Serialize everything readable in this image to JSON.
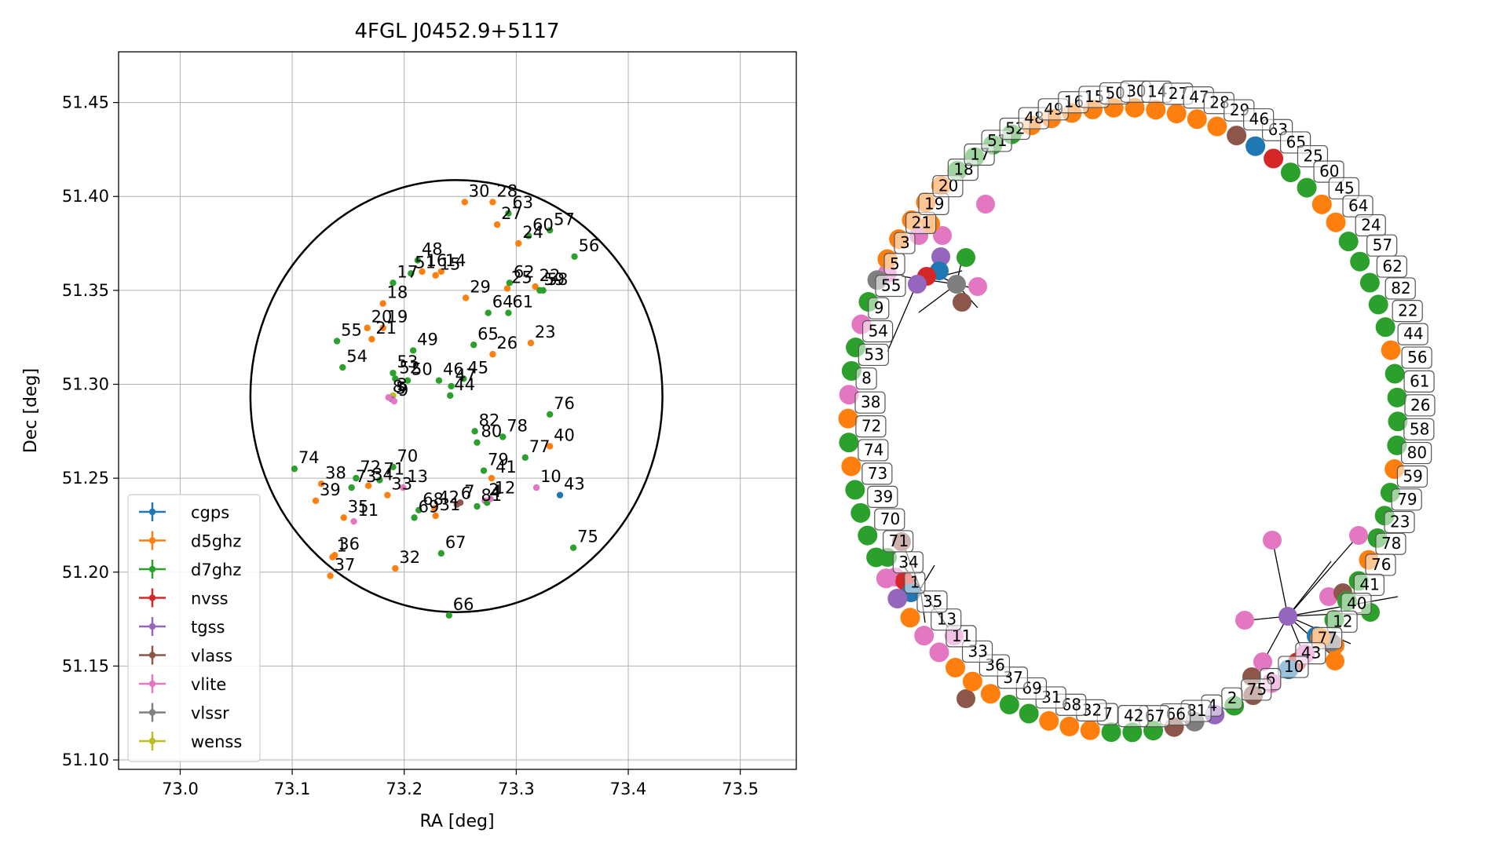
{
  "colors": {
    "cgps": "#1f77b4",
    "d5ghz": "#ff7f0e",
    "d7ghz": "#2ca02c",
    "nvss": "#d62728",
    "tgss": "#9467bd",
    "vlass": "#8c564b",
    "vlite": "#e377c2",
    "vlssr": "#7f7f7f",
    "wenss": "#bcbd22"
  },
  "chart_data": [
    {
      "type": "scatter",
      "title": "4FGL J0452.9+5117",
      "xlabel": "RA [deg]",
      "ylabel": "Dec [deg]",
      "xlim": [
        72.945,
        73.55
      ],
      "ylim": [
        51.095,
        51.477
      ],
      "xticks": [
        "73.0",
        "73.1",
        "73.2",
        "73.3",
        "73.4",
        "73.5"
      ],
      "yticks": [
        "51.10",
        "51.15",
        "51.20",
        "51.25",
        "51.30",
        "51.35",
        "51.40",
        "51.45"
      ],
      "grid": true,
      "legend_position": "lower-left",
      "legend": [
        "cgps",
        "d5ghz",
        "d7ghz",
        "nvss",
        "tgss",
        "vlass",
        "vlite",
        "vlssr",
        "wenss"
      ],
      "circle": {
        "center_ra": 73.2466,
        "center_dec": 51.2937,
        "radius": 0.115
      },
      "points": [
        {
          "id": "1",
          "ra": 73.136,
          "dec": 51.208,
          "cat": "d5ghz"
        },
        {
          "id": "2",
          "ra": 73.272,
          "dec": 51.238,
          "cat": "vlite"
        },
        {
          "id": "3",
          "ra": 73.19,
          "dec": 51.294,
          "cat": "wenss"
        },
        {
          "id": "4",
          "ra": 73.274,
          "dec": 51.237,
          "cat": "d7ghz"
        },
        {
          "id": "5",
          "ra": 73.189,
          "dec": 51.292,
          "cat": "tgss"
        },
        {
          "id": "6",
          "ra": 73.247,
          "dec": 51.236,
          "cat": "vlass"
        },
        {
          "id": "7",
          "ra": 73.25,
          "dec": 51.237,
          "cat": "vlass"
        },
        {
          "id": "8",
          "ra": 73.186,
          "dec": 51.293,
          "cat": "vlite"
        },
        {
          "id": "9",
          "ra": 73.191,
          "dec": 51.291,
          "cat": "vlite"
        },
        {
          "id": "10",
          "ra": 73.318,
          "dec": 51.245,
          "cat": "vlite"
        },
        {
          "id": "11",
          "ra": 73.155,
          "dec": 51.227,
          "cat": "vlite"
        },
        {
          "id": "12",
          "ra": 73.277,
          "dec": 51.239,
          "cat": "vlite"
        },
        {
          "id": "13",
          "ra": 73.199,
          "dec": 51.245,
          "cat": "vlite"
        },
        {
          "id": "14",
          "ra": 73.233,
          "dec": 51.36,
          "cat": "d5ghz"
        },
        {
          "id": "15",
          "ra": 73.228,
          "dec": 51.358,
          "cat": "d5ghz"
        },
        {
          "id": "16",
          "ra": 73.216,
          "dec": 51.36,
          "cat": "d5ghz"
        },
        {
          "id": "17",
          "ra": 73.19,
          "dec": 51.354,
          "cat": "d7ghz"
        },
        {
          "id": "18",
          "ra": 73.181,
          "dec": 51.343,
          "cat": "d5ghz"
        },
        {
          "id": "19",
          "ra": 73.181,
          "dec": 51.33,
          "cat": "d5ghz"
        },
        {
          "id": "20",
          "ra": 73.167,
          "dec": 51.33,
          "cat": "d5ghz"
        },
        {
          "id": "21",
          "ra": 73.171,
          "dec": 51.324,
          "cat": "d5ghz"
        },
        {
          "id": "22",
          "ra": 73.317,
          "dec": 51.352,
          "cat": "d5ghz"
        },
        {
          "id": "23",
          "ra": 73.313,
          "dec": 51.322,
          "cat": "d5ghz"
        },
        {
          "id": "24",
          "ra": 73.302,
          "dec": 51.375,
          "cat": "d5ghz"
        },
        {
          "id": "25",
          "ra": 73.292,
          "dec": 51.351,
          "cat": "d5ghz"
        },
        {
          "id": "26",
          "ra": 73.279,
          "dec": 51.316,
          "cat": "d5ghz"
        },
        {
          "id": "27",
          "ra": 73.283,
          "dec": 51.385,
          "cat": "d5ghz"
        },
        {
          "id": "28",
          "ra": 73.279,
          "dec": 51.397,
          "cat": "d5ghz"
        },
        {
          "id": "29",
          "ra": 73.255,
          "dec": 51.346,
          "cat": "d5ghz"
        },
        {
          "id": "30",
          "ra": 73.254,
          "dec": 51.397,
          "cat": "d5ghz"
        },
        {
          "id": "31",
          "ra": 73.228,
          "dec": 51.23,
          "cat": "d5ghz"
        },
        {
          "id": "32",
          "ra": 73.192,
          "dec": 51.202,
          "cat": "d5ghz"
        },
        {
          "id": "33",
          "ra": 73.185,
          "dec": 51.241,
          "cat": "d5ghz"
        },
        {
          "id": "34",
          "ra": 73.168,
          "dec": 51.246,
          "cat": "d5ghz"
        },
        {
          "id": "35",
          "ra": 73.146,
          "dec": 51.229,
          "cat": "d5ghz"
        },
        {
          "id": "36",
          "ra": 73.138,
          "dec": 51.209,
          "cat": "d5ghz"
        },
        {
          "id": "37",
          "ra": 73.134,
          "dec": 51.198,
          "cat": "d5ghz"
        },
        {
          "id": "38",
          "ra": 73.126,
          "dec": 51.247,
          "cat": "d5ghz"
        },
        {
          "id": "39",
          "ra": 73.121,
          "dec": 51.238,
          "cat": "d5ghz"
        },
        {
          "id": "40",
          "ra": 73.33,
          "dec": 51.267,
          "cat": "d5ghz"
        },
        {
          "id": "41",
          "ra": 73.278,
          "dec": 51.25,
          "cat": "d5ghz"
        },
        {
          "id": "42",
          "ra": 73.227,
          "dec": 51.234,
          "cat": "d5ghz"
        },
        {
          "id": "43",
          "ra": 73.339,
          "dec": 51.241,
          "cat": "cgps"
        },
        {
          "id": "44",
          "ra": 73.241,
          "dec": 51.294,
          "cat": "d7ghz"
        },
        {
          "id": "45",
          "ra": 73.253,
          "dec": 51.303,
          "cat": "d7ghz"
        },
        {
          "id": "46",
          "ra": 73.231,
          "dec": 51.302,
          "cat": "d7ghz"
        },
        {
          "id": "47",
          "ra": 73.242,
          "dec": 51.299,
          "cat": "d7ghz"
        },
        {
          "id": "48",
          "ra": 73.212,
          "dec": 51.366,
          "cat": "d7ghz"
        },
        {
          "id": "49",
          "ra": 73.208,
          "dec": 51.318,
          "cat": "d7ghz"
        },
        {
          "id": "50",
          "ra": 73.203,
          "dec": 51.302,
          "cat": "d7ghz"
        },
        {
          "id": "51",
          "ra": 73.206,
          "dec": 51.359,
          "cat": "d7ghz"
        },
        {
          "id": "52",
          "ra": 73.192,
          "dec": 51.303,
          "cat": "d7ghz"
        },
        {
          "id": "53",
          "ra": 73.19,
          "dec": 51.306,
          "cat": "d7ghz"
        },
        {
          "id": "54",
          "ra": 73.145,
          "dec": 51.309,
          "cat": "d7ghz"
        },
        {
          "id": "55",
          "ra": 73.14,
          "dec": 51.323,
          "cat": "d7ghz"
        },
        {
          "id": "56",
          "ra": 73.352,
          "dec": 51.368,
          "cat": "d7ghz"
        },
        {
          "id": "57",
          "ra": 73.33,
          "dec": 51.382,
          "cat": "d7ghz"
        },
        {
          "id": "58",
          "ra": 73.324,
          "dec": 51.35,
          "cat": "d7ghz"
        },
        {
          "id": "59",
          "ra": 73.321,
          "dec": 51.35,
          "cat": "d7ghz"
        },
        {
          "id": "60",
          "ra": 73.311,
          "dec": 51.379,
          "cat": "d7ghz"
        },
        {
          "id": "61",
          "ra": 73.293,
          "dec": 51.338,
          "cat": "d7ghz"
        },
        {
          "id": "62",
          "ra": 73.294,
          "dec": 51.354,
          "cat": "d7ghz"
        },
        {
          "id": "63",
          "ra": 73.293,
          "dec": 51.391,
          "cat": "d7ghz"
        },
        {
          "id": "64",
          "ra": 73.275,
          "dec": 51.338,
          "cat": "d7ghz"
        },
        {
          "id": "65",
          "ra": 73.262,
          "dec": 51.321,
          "cat": "d7ghz"
        },
        {
          "id": "66",
          "ra": 73.24,
          "dec": 51.177,
          "cat": "d7ghz"
        },
        {
          "id": "67",
          "ra": 73.233,
          "dec": 51.21,
          "cat": "d7ghz"
        },
        {
          "id": "68",
          "ra": 73.213,
          "dec": 51.233,
          "cat": "d7ghz"
        },
        {
          "id": "69",
          "ra": 73.209,
          "dec": 51.229,
          "cat": "d7ghz"
        },
        {
          "id": "70",
          "ra": 73.19,
          "dec": 51.256,
          "cat": "d7ghz"
        },
        {
          "id": "71",
          "ra": 73.178,
          "dec": 51.249,
          "cat": "d7ghz"
        },
        {
          "id": "72",
          "ra": 73.157,
          "dec": 51.25,
          "cat": "d7ghz"
        },
        {
          "id": "73",
          "ra": 73.153,
          "dec": 51.245,
          "cat": "d7ghz"
        },
        {
          "id": "74",
          "ra": 73.102,
          "dec": 51.255,
          "cat": "d7ghz"
        },
        {
          "id": "75",
          "ra": 73.351,
          "dec": 51.213,
          "cat": "d7ghz"
        },
        {
          "id": "76",
          "ra": 73.33,
          "dec": 51.284,
          "cat": "d7ghz"
        },
        {
          "id": "77",
          "ra": 73.308,
          "dec": 51.261,
          "cat": "d7ghz"
        },
        {
          "id": "78",
          "ra": 73.288,
          "dec": 51.272,
          "cat": "d7ghz"
        },
        {
          "id": "79",
          "ra": 73.271,
          "dec": 51.254,
          "cat": "d7ghz"
        },
        {
          "id": "80",
          "ra": 73.265,
          "dec": 51.269,
          "cat": "d7ghz"
        },
        {
          "id": "81",
          "ra": 73.265,
          "dec": 51.235,
          "cat": "d7ghz"
        },
        {
          "id": "82",
          "ra": 73.263,
          "dec": 51.275,
          "cat": "d7ghz"
        }
      ]
    },
    {
      "type": "network",
      "nodes": [
        {
          "id": "63",
          "cat": "cgps",
          "label": "63"
        },
        {
          "id": "65",
          "cat": "nvss",
          "label": "65"
        },
        {
          "id": "25",
          "cat": "d7ghz",
          "label": "25"
        },
        {
          "id": "60",
          "cat": "d7ghz",
          "label": "60"
        },
        {
          "id": "45",
          "cat": "d5ghz",
          "label": "45"
        },
        {
          "id": "64",
          "cat": "d5ghz",
          "label": "64"
        },
        {
          "id": "24",
          "cat": "d7ghz",
          "label": "24"
        },
        {
          "id": "57",
          "cat": "d7ghz",
          "label": "57"
        },
        {
          "id": "62",
          "cat": "d7ghz",
          "label": "62"
        },
        {
          "id": "82",
          "cat": "d7ghz",
          "label": "82"
        },
        {
          "id": "22",
          "cat": "d7ghz",
          "label": "22"
        },
        {
          "id": "44",
          "cat": "d5ghz",
          "label": "44"
        },
        {
          "id": "56",
          "cat": "d7ghz",
          "label": "56"
        },
        {
          "id": "61",
          "cat": "d7ghz",
          "label": "61"
        },
        {
          "id": "26",
          "cat": "d7ghz",
          "label": "26"
        },
        {
          "id": "58",
          "cat": "d7ghz",
          "label": "58"
        },
        {
          "id": "80",
          "cat": "d5ghz",
          "label": "80"
        },
        {
          "id": "59",
          "cat": "d7ghz",
          "label": "59"
        },
        {
          "id": "79",
          "cat": "d7ghz",
          "label": "79"
        },
        {
          "id": "23",
          "cat": "d7ghz",
          "label": "23"
        },
        {
          "id": "78",
          "cat": "d5ghz",
          "label": "78"
        },
        {
          "id": "76",
          "cat": "d7ghz",
          "label": "76"
        },
        {
          "id": "41",
          "cat": "d7ghz",
          "label": "41"
        },
        {
          "id": "40",
          "cat": "d7ghz",
          "label": "40"
        },
        {
          "id": "12",
          "cat": "d5ghz",
          "label": "12"
        },
        {
          "id": "77",
          "cat": "vlite",
          "label": "77"
        },
        {
          "id": "43",
          "cat": "cgps",
          "label": "43"
        },
        {
          "id": "10",
          "cat": "vlite",
          "label": "10"
        },
        {
          "id": "6",
          "cat": "vlass",
          "label": "6"
        },
        {
          "id": "75",
          "cat": "d7ghz",
          "label": "75"
        },
        {
          "id": "2",
          "cat": "tgss",
          "label": "2"
        },
        {
          "id": "4",
          "cat": "vlssr",
          "label": "4"
        },
        {
          "id": "81",
          "cat": "vlass",
          "label": "81"
        },
        {
          "id": "66",
          "cat": "d7ghz",
          "label": "66"
        },
        {
          "id": "67",
          "cat": "d7ghz",
          "label": "67"
        },
        {
          "id": "42",
          "cat": "d7ghz",
          "label": "42"
        },
        {
          "id": "7",
          "cat": "d5ghz",
          "label": "7"
        },
        {
          "id": "32",
          "cat": "d5ghz",
          "label": "32"
        },
        {
          "id": "68",
          "cat": "d5ghz",
          "label": "68"
        },
        {
          "id": "31",
          "cat": "d7ghz",
          "label": "31"
        },
        {
          "id": "69",
          "cat": "d7ghz",
          "label": "69"
        },
        {
          "id": "37",
          "cat": "d5ghz",
          "label": "37"
        },
        {
          "id": "36",
          "cat": "d5ghz",
          "label": "36"
        },
        {
          "id": "33",
          "cat": "d5ghz",
          "label": "33"
        },
        {
          "id": "11",
          "cat": "vlite",
          "label": "11"
        },
        {
          "id": "13",
          "cat": "vlite",
          "label": "13"
        },
        {
          "id": "35",
          "cat": "d5ghz",
          "label": "35"
        },
        {
          "id": "1",
          "cat": "tgss",
          "label": "1"
        },
        {
          "id": "34",
          "cat": "vlite",
          "label": "34"
        },
        {
          "id": "71",
          "cat": "d7ghz",
          "label": "71"
        },
        {
          "id": "70",
          "cat": "d7ghz",
          "label": "70"
        },
        {
          "id": "39",
          "cat": "d7ghz",
          "label": "39"
        },
        {
          "id": "73",
          "cat": "d7ghz",
          "label": "73"
        },
        {
          "id": "74",
          "cat": "d5ghz",
          "label": "74"
        },
        {
          "id": "72",
          "cat": "d7ghz",
          "label": "72"
        },
        {
          "id": "38",
          "cat": "d5ghz",
          "label": "38"
        },
        {
          "id": "8",
          "cat": "vlite",
          "label": "8"
        },
        {
          "id": "53",
          "cat": "d7ghz",
          "label": "53"
        },
        {
          "id": "54",
          "cat": "d7ghz",
          "label": "54"
        },
        {
          "id": "9",
          "cat": "vlite",
          "label": "9"
        },
        {
          "id": "55",
          "cat": "d7ghz",
          "label": "55"
        },
        {
          "id": "5",
          "cat": "vlssr",
          "label": "5"
        },
        {
          "id": "3",
          "cat": "d5ghz",
          "label": "3"
        },
        {
          "id": "21",
          "cat": "d5ghz",
          "label": "21"
        },
        {
          "id": "19",
          "cat": "d5ghz",
          "label": "19"
        },
        {
          "id": "20",
          "cat": "d5ghz",
          "label": "20"
        },
        {
          "id": "18",
          "cat": "d5ghz",
          "label": "18"
        },
        {
          "id": "17",
          "cat": "d7ghz",
          "label": "17"
        },
        {
          "id": "51",
          "cat": "d7ghz",
          "label": "51"
        },
        {
          "id": "52",
          "cat": "d7ghz",
          "label": "52"
        },
        {
          "id": "48",
          "cat": "d7ghz",
          "label": "48"
        },
        {
          "id": "49",
          "cat": "d5ghz",
          "label": "49"
        },
        {
          "id": "16",
          "cat": "d5ghz",
          "label": "16"
        },
        {
          "id": "15",
          "cat": "d5ghz",
          "label": "15"
        },
        {
          "id": "50",
          "cat": "d5ghz",
          "label": "50"
        },
        {
          "id": "30",
          "cat": "d5ghz",
          "label": "30"
        },
        {
          "id": "14",
          "cat": "d5ghz",
          "label": "14"
        },
        {
          "id": "27",
          "cat": "d5ghz",
          "label": "27"
        },
        {
          "id": "47",
          "cat": "d5ghz",
          "label": "47"
        },
        {
          "id": "28",
          "cat": "d5ghz",
          "label": "28"
        },
        {
          "id": "29",
          "cat": "d5ghz",
          "label": "29"
        },
        {
          "id": "46",
          "cat": "vlass",
          "label": "46"
        }
      ]
    }
  ]
}
